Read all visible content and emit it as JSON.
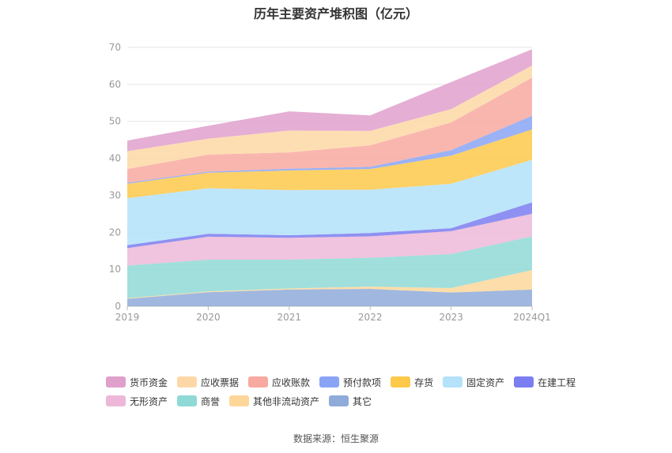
{
  "chart_data": {
    "type": "area",
    "stacked": true,
    "title": "历年主要资产堆积图（亿元）",
    "categories": [
      "2019",
      "2020",
      "2021",
      "2022",
      "2023",
      "2024Q1"
    ],
    "ylim": [
      0,
      70
    ],
    "yticks": [
      0,
      10,
      20,
      30,
      40,
      50,
      60,
      70
    ],
    "grid": true,
    "legend_position": "bottom",
    "series": [
      {
        "name": "其它",
        "color": "#8fabd9",
        "values": [
          2.0,
          3.8,
          4.5,
          4.7,
          3.7,
          4.5
        ]
      },
      {
        "name": "其他非流动资产",
        "color": "#fdd79a",
        "values": [
          0.2,
          0.2,
          0.3,
          0.6,
          1.2,
          5.3
        ]
      },
      {
        "name": "商誉",
        "color": "#8fd9d6",
        "values": [
          8.8,
          8.6,
          7.8,
          7.8,
          9.2,
          9.1
        ]
      },
      {
        "name": "无形资产",
        "color": "#edb8d8",
        "values": [
          4.7,
          6.2,
          5.9,
          5.8,
          6.2,
          6.1
        ]
      },
      {
        "name": "在建工程",
        "color": "#7b7ef0",
        "values": [
          0.8,
          0.8,
          0.7,
          0.9,
          0.8,
          3.1
        ]
      },
      {
        "name": "固定资产",
        "color": "#b3e2f9",
        "values": [
          12.7,
          12.3,
          12.2,
          11.7,
          12.0,
          11.5
        ]
      },
      {
        "name": "存货",
        "color": "#fdc94a",
        "values": [
          3.9,
          4.2,
          5.3,
          5.6,
          7.6,
          8.2
        ]
      },
      {
        "name": "预付款项",
        "color": "#8aa4f5",
        "values": [
          0.3,
          0.3,
          0.5,
          0.6,
          1.5,
          3.7
        ]
      },
      {
        "name": "应收账款",
        "color": "#f8a9a0",
        "values": [
          3.7,
          4.6,
          4.4,
          5.8,
          7.5,
          10.3
        ]
      },
      {
        "name": "应收票据",
        "color": "#fdd8a6",
        "values": [
          4.8,
          4.3,
          5.9,
          3.9,
          3.6,
          3.3
        ]
      },
      {
        "name": "货币资金",
        "color": "#e0a0cc",
        "values": [
          2.9,
          3.5,
          5.2,
          4.2,
          7.3,
          4.4
        ]
      }
    ],
    "legend_rows": [
      [
        "货币资金",
        "应收票据",
        "应收账款",
        "预付款项",
        "存货",
        "固定资产",
        "在建工程"
      ],
      [
        "无形资产",
        "商誉",
        "其他非流动资产",
        "其它"
      ]
    ]
  },
  "source_text": "数据来源：恒生聚源"
}
